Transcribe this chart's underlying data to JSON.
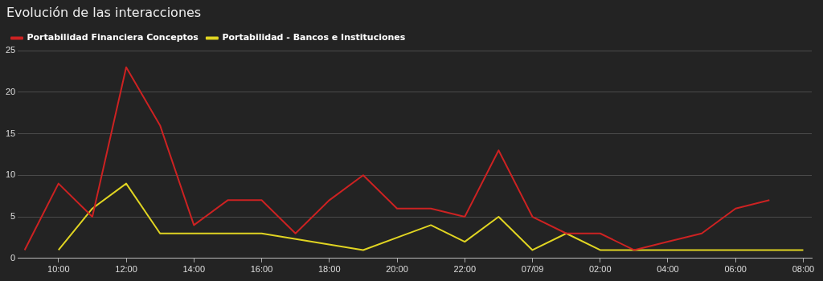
{
  "chart_data": {
    "type": "line",
    "title": "Evolución de las interacciones",
    "xlim": [
      "--09-06T08:48",
      "--09-07T08:15"
    ],
    "xticks": [
      {
        "value": "--09-06T10:00",
        "label": "10:00"
      },
      {
        "value": "--09-06T12:00",
        "label": "12:00"
      },
      {
        "value": "--09-06T14:00",
        "label": "14:00"
      },
      {
        "value": "--09-06T16:00",
        "label": "16:00"
      },
      {
        "value": "--09-06T18:00",
        "label": "18:00"
      },
      {
        "value": "--09-06T20:00",
        "label": "20:00"
      },
      {
        "value": "--09-06T22:00",
        "label": "22:00"
      },
      {
        "value": "--09-07T00:00",
        "label": "07/09"
      },
      {
        "value": "--09-07T02:00",
        "label": "02:00"
      },
      {
        "value": "--09-07T04:00",
        "label": "04:00"
      },
      {
        "value": "--09-07T06:00",
        "label": "06:00"
      },
      {
        "value": "--09-07T08:00",
        "label": "08:00"
      }
    ],
    "ylim": [
      0,
      25
    ],
    "yticks": [
      0,
      5,
      10,
      15,
      20,
      25
    ],
    "grid": "y",
    "legend": "top left",
    "marker": "none",
    "line_style": "solid",
    "series": [
      {
        "name": "Portabilidad Financiera Conceptos",
        "color": "#cc2222",
        "x": [
          "--09-06T09:00",
          "--09-06T10:00",
          "--09-06T11:00",
          "--09-06T12:00",
          "--09-06T13:00",
          "--09-06T14:00",
          "--09-06T15:00",
          "--09-06T16:00",
          "--09-06T17:00",
          "--09-06T18:00",
          "--09-06T19:00",
          "--09-06T20:00",
          "--09-06T21:00",
          "--09-06T22:00",
          "--09-06T23:00",
          "--09-07T00:00",
          "--09-07T01:00",
          "--09-07T02:00",
          "--09-07T03:00",
          "--09-07T04:00",
          "--09-07T05:00",
          "--09-07T06:00",
          "--09-07T07:00"
        ],
        "values": [
          1,
          9,
          5,
          23,
          16,
          4,
          7,
          7,
          3,
          7,
          10,
          6,
          6,
          5,
          13,
          5,
          3,
          3,
          1,
          2,
          3,
          6,
          7
        ]
      },
      {
        "name": "Portabilidad - Bancos e Instituciones",
        "color": "#e0d422",
        "x": [
          "--09-06T10:00",
          "--09-06T11:00",
          "--09-06T12:00",
          "--09-06T13:00",
          "--09-06T14:00",
          "--09-06T15:00",
          "--09-06T16:00",
          "--09-06T19:00",
          "--09-06T21:00",
          "--09-06T22:00",
          "--09-06T23:00",
          "--09-07T00:00",
          "--09-07T01:00",
          "--09-07T02:00",
          "--09-07T03:00",
          "--09-07T04:00",
          "--09-07T05:00",
          "--09-07T06:00",
          "--09-07T07:00",
          "--09-07T08:00"
        ],
        "values": [
          1,
          6,
          9,
          3,
          3,
          3,
          3,
          1,
          4,
          2,
          5,
          1,
          3,
          1,
          1,
          1,
          1,
          1,
          1,
          1
        ]
      }
    ]
  }
}
